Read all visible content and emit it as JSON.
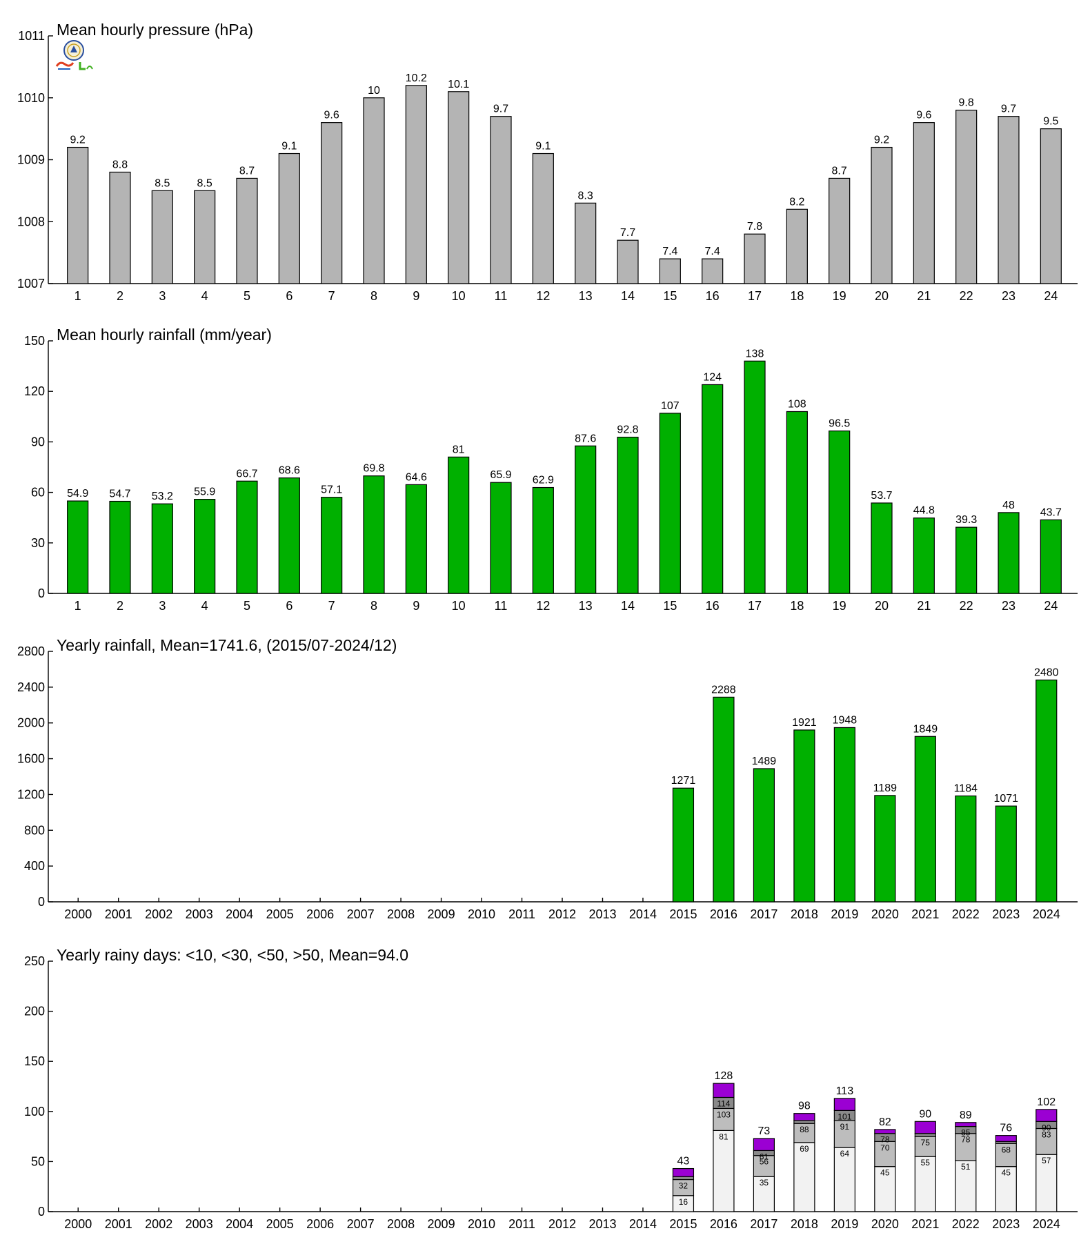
{
  "colors": {
    "pressure_bar": "#b4b4b4",
    "rain_bar": "#00b000",
    "days_lt10": "#f2f2f2",
    "days_lt30": "#bdbdbd",
    "days_lt50": "#8a8a8a",
    "days_gt50": "#9b00d3"
  },
  "chart_data": [
    {
      "type": "bar",
      "title": "Mean hourly pressure (hPa)",
      "categories": [
        "1",
        "2",
        "3",
        "4",
        "5",
        "6",
        "7",
        "8",
        "9",
        "10",
        "11",
        "12",
        "13",
        "14",
        "15",
        "16",
        "17",
        "18",
        "19",
        "20",
        "21",
        "22",
        "23",
        "24"
      ],
      "values": [
        1009.2,
        1008.8,
        1008.5,
        1008.5,
        1008.7,
        1009.1,
        1009.6,
        1010.0,
        1010.2,
        1010.1,
        1009.7,
        1009.1,
        1008.3,
        1007.7,
        1007.4,
        1007.4,
        1007.8,
        1008.2,
        1008.7,
        1009.2,
        1009.6,
        1009.8,
        1009.7,
        1009.5
      ],
      "value_labels": [
        "9.2",
        "8.8",
        "8.5",
        "8.5",
        "8.7",
        "9.1",
        "9.6",
        "10",
        "10.2",
        "10.1",
        "9.7",
        "9.1",
        "8.3",
        "7.7",
        "7.4",
        "7.4",
        "7.8",
        "8.2",
        "8.7",
        "9.2",
        "9.6",
        "9.8",
        "9.7",
        "9.5"
      ],
      "ylim": [
        1007,
        1011
      ],
      "yticks": [
        1007,
        1008,
        1009,
        1010,
        1011
      ],
      "ytick_labels": [
        "1007",
        "1008",
        "1009",
        "1010",
        "1011"
      ],
      "color_key": "pressure_bar"
    },
    {
      "type": "bar",
      "title": "Mean hourly rainfall (mm/year)",
      "categories": [
        "1",
        "2",
        "3",
        "4",
        "5",
        "6",
        "7",
        "8",
        "9",
        "10",
        "11",
        "12",
        "13",
        "14",
        "15",
        "16",
        "17",
        "18",
        "19",
        "20",
        "21",
        "22",
        "23",
        "24"
      ],
      "values": [
        54.9,
        54.7,
        53.2,
        55.9,
        66.7,
        68.6,
        57.1,
        69.8,
        64.6,
        81,
        65.9,
        62.9,
        87.6,
        92.8,
        107,
        124,
        138,
        108,
        96.5,
        53.7,
        44.8,
        39.3,
        48,
        43.7
      ],
      "value_labels": [
        "54.9",
        "54.7",
        "53.2",
        "55.9",
        "66.7",
        "68.6",
        "57.1",
        "69.8",
        "64.6",
        "81",
        "65.9",
        "62.9",
        "87.6",
        "92.8",
        "107",
        "124",
        "138",
        "108",
        "96.5",
        "53.7",
        "44.8",
        "39.3",
        "48",
        "43.7"
      ],
      "ylim": [
        0,
        150
      ],
      "yticks": [
        0,
        30,
        60,
        90,
        120,
        150
      ],
      "ytick_labels": [
        "0",
        "30",
        "60",
        "90",
        "120",
        "150"
      ],
      "color_key": "rain_bar"
    },
    {
      "type": "bar",
      "title": "Yearly rainfall, Mean=1741.6, (2015/07-2024/12)",
      "categories": [
        "2000",
        "2001",
        "2002",
        "2003",
        "2004",
        "2005",
        "2006",
        "2007",
        "2008",
        "2009",
        "2010",
        "2011",
        "2012",
        "2013",
        "2014",
        "2015",
        "2016",
        "2017",
        "2018",
        "2019",
        "2020",
        "2021",
        "2022",
        "2023",
        "2024"
      ],
      "values": [
        null,
        null,
        null,
        null,
        null,
        null,
        null,
        null,
        null,
        null,
        null,
        null,
        null,
        null,
        null,
        1271,
        2288,
        1489,
        1921,
        1948,
        1189,
        1849,
        1184,
        1071,
        2480
      ],
      "value_labels": [
        "",
        "",
        "",
        "",
        "",
        "",
        "",
        "",
        "",
        "",
        "",
        "",
        "",
        "",
        "",
        "1271",
        "2288",
        "1489",
        "1921",
        "1948",
        "1189",
        "1849",
        "1184",
        "1071",
        "2480"
      ],
      "ylim": [
        0,
        2800
      ],
      "yticks": [
        0,
        400,
        800,
        1200,
        1600,
        2000,
        2400,
        2800
      ],
      "ytick_labels": [
        "0",
        "400",
        "800",
        "1200",
        "1600",
        "2000",
        "2400",
        "2800"
      ],
      "color_key": "rain_bar"
    },
    {
      "type": "stacked_bar",
      "title": "Yearly rainy days: <10, <30, <50, >50, Mean=94.0",
      "categories": [
        "2000",
        "2001",
        "2002",
        "2003",
        "2004",
        "2005",
        "2006",
        "2007",
        "2008",
        "2009",
        "2010",
        "2011",
        "2012",
        "2013",
        "2014",
        "2015",
        "2016",
        "2017",
        "2018",
        "2019",
        "2020",
        "2021",
        "2022",
        "2023",
        "2024"
      ],
      "start_index": 15,
      "series_color_keys": [
        "days_lt10",
        "days_lt30",
        "days_lt50",
        "days_gt50"
      ],
      "cumulative": [
        [
          16,
          32,
          35,
          43
        ],
        [
          81,
          103,
          114,
          128
        ],
        [
          35,
          56,
          61,
          73
        ],
        [
          69,
          88,
          91,
          98
        ],
        [
          64,
          91,
          101,
          113
        ],
        [
          45,
          70,
          78,
          82
        ],
        [
          55,
          75,
          78,
          90
        ],
        [
          51,
          78,
          85,
          89
        ],
        [
          45,
          68,
          70,
          76
        ],
        [
          57,
          83,
          90,
          102
        ]
      ],
      "cumulative_labels": [
        [
          "16",
          "32",
          "",
          ""
        ],
        [
          "81",
          "103",
          "114",
          ""
        ],
        [
          "35",
          "56",
          "61",
          ""
        ],
        [
          "69",
          "88",
          "",
          ""
        ],
        [
          "64",
          "91",
          "101",
          ""
        ],
        [
          "45",
          "70",
          "78",
          ""
        ],
        [
          "55",
          "75",
          "",
          ""
        ],
        [
          "51",
          "78",
          "85",
          ""
        ],
        [
          "45",
          "68",
          "",
          ""
        ],
        [
          "57",
          "83",
          "90",
          ""
        ]
      ],
      "total_labels": [
        "43",
        "128",
        "73",
        "98",
        "113",
        "82",
        "90",
        "89",
        "76",
        "102"
      ],
      "ylim": [
        0,
        250
      ],
      "yticks": [
        0,
        50,
        100,
        150,
        200,
        250
      ],
      "ytick_labels": [
        "0",
        "50",
        "100",
        "150",
        "200",
        "250"
      ]
    }
  ]
}
